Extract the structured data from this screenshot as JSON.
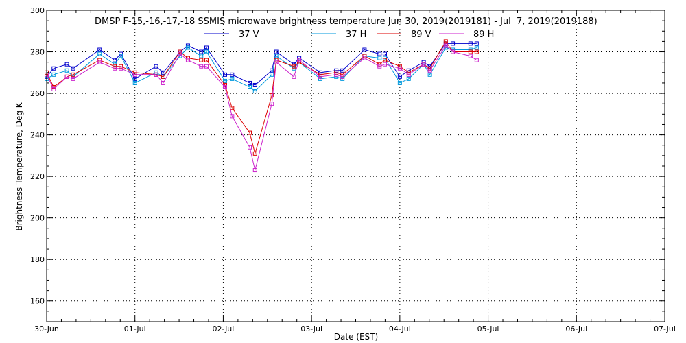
{
  "chart_data": {
    "type": "line",
    "title": "DMSP F-15,-16,-17,-18 SSMIS microwave brightness temperature Jun 30, 2019(2019181) - Jul  7, 2019(2019188)",
    "xlabel": "Date (EST)",
    "ylabel": "Brightness Temperature, Deg K",
    "xlim": [
      0,
      7
    ],
    "ylim": [
      150,
      300
    ],
    "x_ticks": [
      0,
      1,
      2,
      3,
      4,
      5,
      6,
      7
    ],
    "x_tick_labels": [
      "30-Jun",
      "01-Jul",
      "02-Jul",
      "03-Jul",
      "04-Jul",
      "05-Jul",
      "06-Jul",
      "07-Jul"
    ],
    "y_ticks": [
      160,
      180,
      200,
      220,
      240,
      260,
      280,
      300
    ],
    "y_tick_labels": [
      "160",
      "180",
      "200",
      "220",
      "240",
      "260",
      "280",
      "300"
    ],
    "x_units": "days since 30-Jun 00:00 EST",
    "grid": true,
    "legend_position": "top-center",
    "series": [
      {
        "name": "37 V",
        "color": "#0000cc",
        "points": [
          [
            0.0,
            268
          ],
          [
            0.08,
            272
          ],
          [
            0.23,
            274
          ],
          [
            0.3,
            272
          ],
          [
            0.6,
            281
          ],
          [
            0.77,
            276
          ],
          [
            0.84,
            279
          ],
          [
            1.0,
            267
          ],
          [
            1.24,
            273
          ],
          [
            1.32,
            270
          ],
          [
            1.51,
            280
          ],
          [
            1.6,
            283
          ],
          [
            1.75,
            280
          ],
          [
            1.81,
            282
          ],
          [
            2.02,
            269
          ],
          [
            2.1,
            269
          ],
          [
            2.3,
            265
          ],
          [
            2.36,
            264
          ],
          [
            2.55,
            271
          ],
          [
            2.6,
            280
          ],
          [
            2.8,
            274
          ],
          [
            2.86,
            277
          ],
          [
            3.1,
            270
          ],
          [
            3.28,
            271
          ],
          [
            3.35,
            271
          ],
          [
            3.6,
            281
          ],
          [
            3.77,
            279
          ],
          [
            3.83,
            279
          ],
          [
            4.0,
            268
          ],
          [
            4.1,
            271
          ],
          [
            4.27,
            275
          ],
          [
            4.34,
            273
          ],
          [
            4.52,
            284
          ],
          [
            4.6,
            284
          ],
          [
            4.8,
            284
          ],
          [
            4.87,
            284
          ]
        ]
      },
      {
        "name": "37 H",
        "color": "#0099dd",
        "points": [
          [
            0.0,
            267
          ],
          [
            0.08,
            269
          ],
          [
            0.23,
            271
          ],
          [
            0.3,
            268
          ],
          [
            0.6,
            279
          ],
          [
            0.77,
            274
          ],
          [
            0.84,
            278
          ],
          [
            1.0,
            265
          ],
          [
            1.24,
            270
          ],
          [
            1.32,
            268
          ],
          [
            1.51,
            278
          ],
          [
            1.6,
            282
          ],
          [
            1.75,
            278
          ],
          [
            1.81,
            280
          ],
          [
            2.02,
            266
          ],
          [
            2.1,
            267
          ],
          [
            2.3,
            263
          ],
          [
            2.36,
            261
          ],
          [
            2.55,
            269
          ],
          [
            2.6,
            278
          ],
          [
            2.8,
            272
          ],
          [
            2.86,
            275
          ],
          [
            3.1,
            267
          ],
          [
            3.28,
            268
          ],
          [
            3.35,
            267
          ],
          [
            3.6,
            278
          ],
          [
            3.77,
            277
          ],
          [
            3.83,
            277
          ],
          [
            4.0,
            265
          ],
          [
            4.1,
            267
          ],
          [
            4.27,
            274
          ],
          [
            4.34,
            269
          ],
          [
            4.52,
            282
          ],
          [
            4.6,
            281
          ],
          [
            4.8,
            281
          ],
          [
            4.87,
            282
          ]
        ]
      },
      {
        "name": "89 V",
        "color": "#dd0000",
        "points": [
          [
            0.0,
            270
          ],
          [
            0.08,
            263
          ],
          [
            0.23,
            268
          ],
          [
            0.3,
            269
          ],
          [
            0.6,
            276
          ],
          [
            0.77,
            273
          ],
          [
            0.84,
            273
          ],
          [
            1.0,
            270
          ],
          [
            1.24,
            269
          ],
          [
            1.32,
            268
          ],
          [
            1.51,
            280
          ],
          [
            1.6,
            277
          ],
          [
            1.75,
            276
          ],
          [
            1.81,
            276
          ],
          [
            2.02,
            264
          ],
          [
            2.1,
            253
          ],
          [
            2.3,
            241
          ],
          [
            2.36,
            231
          ],
          [
            2.55,
            259
          ],
          [
            2.6,
            276
          ],
          [
            2.8,
            273
          ],
          [
            2.86,
            275
          ],
          [
            3.1,
            269
          ],
          [
            3.28,
            270
          ],
          [
            3.35,
            269
          ],
          [
            3.6,
            278
          ],
          [
            3.77,
            274
          ],
          [
            3.83,
            276
          ],
          [
            4.0,
            273
          ],
          [
            4.1,
            270
          ],
          [
            4.27,
            274
          ],
          [
            4.34,
            272
          ],
          [
            4.52,
            285
          ],
          [
            4.6,
            280
          ],
          [
            4.8,
            280
          ],
          [
            4.87,
            280
          ]
        ]
      },
      {
        "name": "89 H",
        "color": "#cc22cc",
        "points": [
          [
            0.0,
            269
          ],
          [
            0.08,
            262
          ],
          [
            0.23,
            268
          ],
          [
            0.3,
            267
          ],
          [
            0.6,
            275
          ],
          [
            0.77,
            272
          ],
          [
            0.84,
            272
          ],
          [
            1.0,
            269
          ],
          [
            1.24,
            269
          ],
          [
            1.32,
            265
          ],
          [
            1.51,
            279
          ],
          [
            1.6,
            276
          ],
          [
            1.75,
            273
          ],
          [
            1.81,
            273
          ],
          [
            2.02,
            263
          ],
          [
            2.1,
            249
          ],
          [
            2.3,
            234
          ],
          [
            2.36,
            223
          ],
          [
            2.55,
            255
          ],
          [
            2.6,
            275
          ],
          [
            2.8,
            268
          ],
          [
            2.86,
            276
          ],
          [
            3.1,
            268
          ],
          [
            3.28,
            269
          ],
          [
            3.35,
            268
          ],
          [
            3.6,
            277
          ],
          [
            3.77,
            273
          ],
          [
            3.83,
            274
          ],
          [
            4.0,
            272
          ],
          [
            4.1,
            269
          ],
          [
            4.27,
            274
          ],
          [
            4.34,
            271
          ],
          [
            4.52,
            283
          ],
          [
            4.6,
            280
          ],
          [
            4.8,
            278
          ],
          [
            4.87,
            276
          ]
        ]
      }
    ]
  }
}
